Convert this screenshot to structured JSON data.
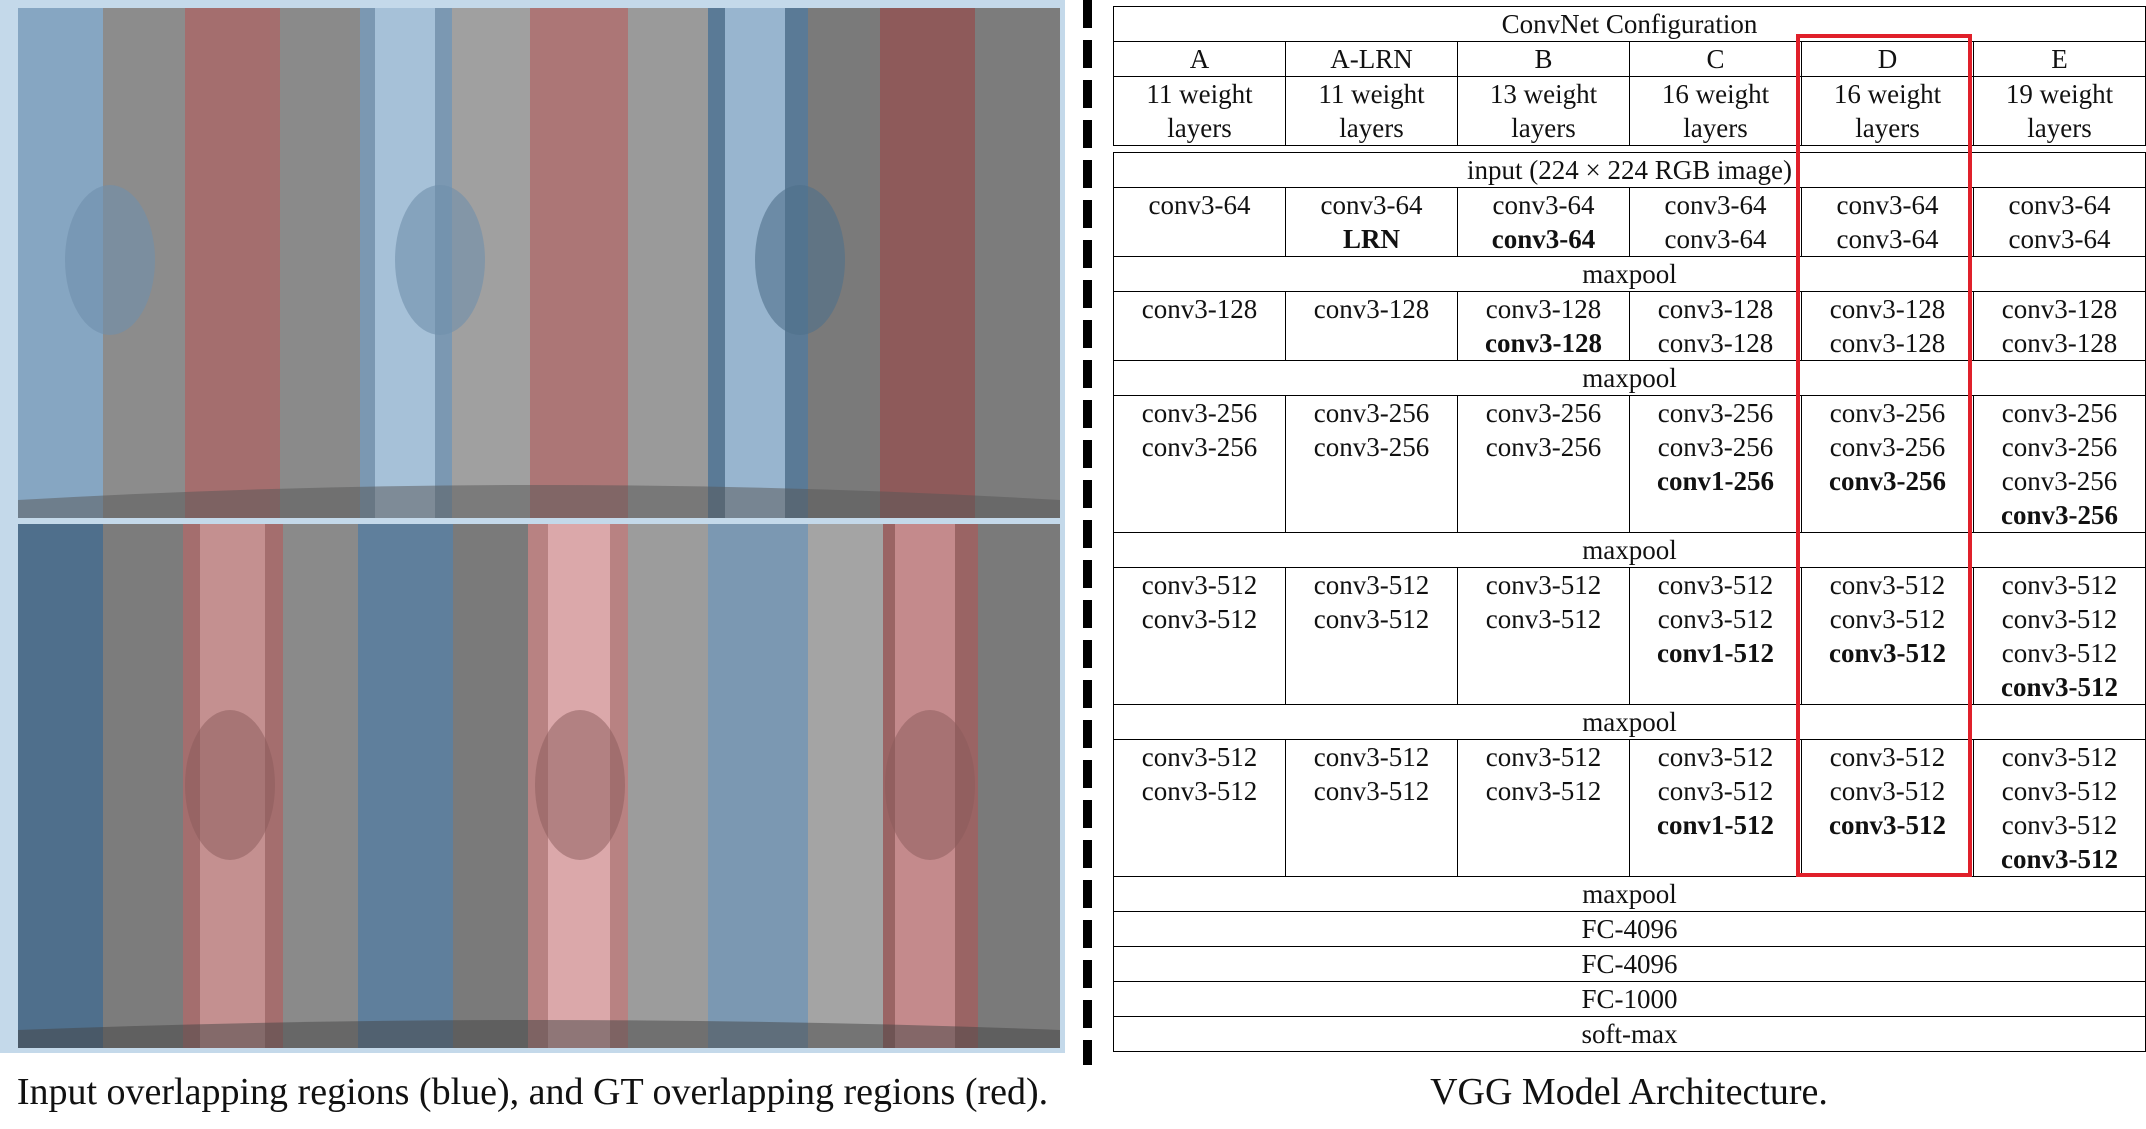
{
  "left_caption": "Input overlapping regions (blue), and GT overlapping regions (red).",
  "right_caption": "VGG Model Architecture.",
  "colors": {
    "blue_region": "#7d9cb8",
    "red_region": "#a86a6a",
    "gray_region": "#8a8a8a",
    "highlight": "#e0202a"
  },
  "table": {
    "title": "ConvNet Configuration",
    "columns": [
      {
        "name": "A",
        "depth": [
          "11 weight",
          "layers"
        ]
      },
      {
        "name": "A-LRN",
        "depth": [
          "11 weight",
          "layers"
        ]
      },
      {
        "name": "B",
        "depth": [
          "13 weight",
          "layers"
        ]
      },
      {
        "name": "C",
        "depth": [
          "16 weight",
          "layers"
        ]
      },
      {
        "name": "D",
        "depth": [
          "16 weight",
          "layers"
        ]
      },
      {
        "name": "E",
        "depth": [
          "19 weight",
          "layers"
        ]
      }
    ],
    "input_row": "input (224 × 224 RGB image)",
    "blocks": [
      {
        "cells": [
          [
            {
              "t": "conv3-64"
            }
          ],
          [
            {
              "t": "conv3-64"
            },
            {
              "t": "LRN",
              "b": true
            }
          ],
          [
            {
              "t": "conv3-64"
            },
            {
              "t": "conv3-64",
              "b": true
            }
          ],
          [
            {
              "t": "conv3-64"
            },
            {
              "t": "conv3-64"
            }
          ],
          [
            {
              "t": "conv3-64"
            },
            {
              "t": "conv3-64"
            }
          ],
          [
            {
              "t": "conv3-64"
            },
            {
              "t": "conv3-64"
            }
          ]
        ],
        "pool": "maxpool"
      },
      {
        "cells": [
          [
            {
              "t": "conv3-128"
            }
          ],
          [
            {
              "t": "conv3-128"
            }
          ],
          [
            {
              "t": "conv3-128"
            },
            {
              "t": "conv3-128",
              "b": true
            }
          ],
          [
            {
              "t": "conv3-128"
            },
            {
              "t": "conv3-128"
            }
          ],
          [
            {
              "t": "conv3-128"
            },
            {
              "t": "conv3-128"
            }
          ],
          [
            {
              "t": "conv3-128"
            },
            {
              "t": "conv3-128"
            }
          ]
        ],
        "pool": "maxpool"
      },
      {
        "cells": [
          [
            {
              "t": "conv3-256"
            },
            {
              "t": "conv3-256"
            }
          ],
          [
            {
              "t": "conv3-256"
            },
            {
              "t": "conv3-256"
            }
          ],
          [
            {
              "t": "conv3-256"
            },
            {
              "t": "conv3-256"
            }
          ],
          [
            {
              "t": "conv3-256"
            },
            {
              "t": "conv3-256"
            },
            {
              "t": "conv1-256",
              "b": true
            }
          ],
          [
            {
              "t": "conv3-256"
            },
            {
              "t": "conv3-256"
            },
            {
              "t": "conv3-256",
              "b": true
            }
          ],
          [
            {
              "t": "conv3-256"
            },
            {
              "t": "conv3-256"
            },
            {
              "t": "conv3-256"
            },
            {
              "t": "conv3-256",
              "b": true
            }
          ]
        ],
        "pool": "maxpool"
      },
      {
        "cells": [
          [
            {
              "t": "conv3-512"
            },
            {
              "t": "conv3-512"
            }
          ],
          [
            {
              "t": "conv3-512"
            },
            {
              "t": "conv3-512"
            }
          ],
          [
            {
              "t": "conv3-512"
            },
            {
              "t": "conv3-512"
            }
          ],
          [
            {
              "t": "conv3-512"
            },
            {
              "t": "conv3-512"
            },
            {
              "t": "conv1-512",
              "b": true
            }
          ],
          [
            {
              "t": "conv3-512"
            },
            {
              "t": "conv3-512"
            },
            {
              "t": "conv3-512",
              "b": true
            }
          ],
          [
            {
              "t": "conv3-512"
            },
            {
              "t": "conv3-512"
            },
            {
              "t": "conv3-512"
            },
            {
              "t": "conv3-512",
              "b": true
            }
          ]
        ],
        "pool": "maxpool"
      },
      {
        "cells": [
          [
            {
              "t": "conv3-512"
            },
            {
              "t": "conv3-512"
            }
          ],
          [
            {
              "t": "conv3-512"
            },
            {
              "t": "conv3-512"
            }
          ],
          [
            {
              "t": "conv3-512"
            },
            {
              "t": "conv3-512"
            }
          ],
          [
            {
              "t": "conv3-512"
            },
            {
              "t": "conv3-512"
            },
            {
              "t": "conv1-512",
              "b": true
            }
          ],
          [
            {
              "t": "conv3-512"
            },
            {
              "t": "conv3-512"
            },
            {
              "t": "conv3-512",
              "b": true
            }
          ],
          [
            {
              "t": "conv3-512"
            },
            {
              "t": "conv3-512"
            },
            {
              "t": "conv3-512"
            },
            {
              "t": "conv3-512",
              "b": true
            }
          ]
        ],
        "pool": "maxpool"
      }
    ],
    "tail_rows": [
      "FC-4096",
      "FC-4096",
      "FC-1000",
      "soft-max"
    ]
  }
}
